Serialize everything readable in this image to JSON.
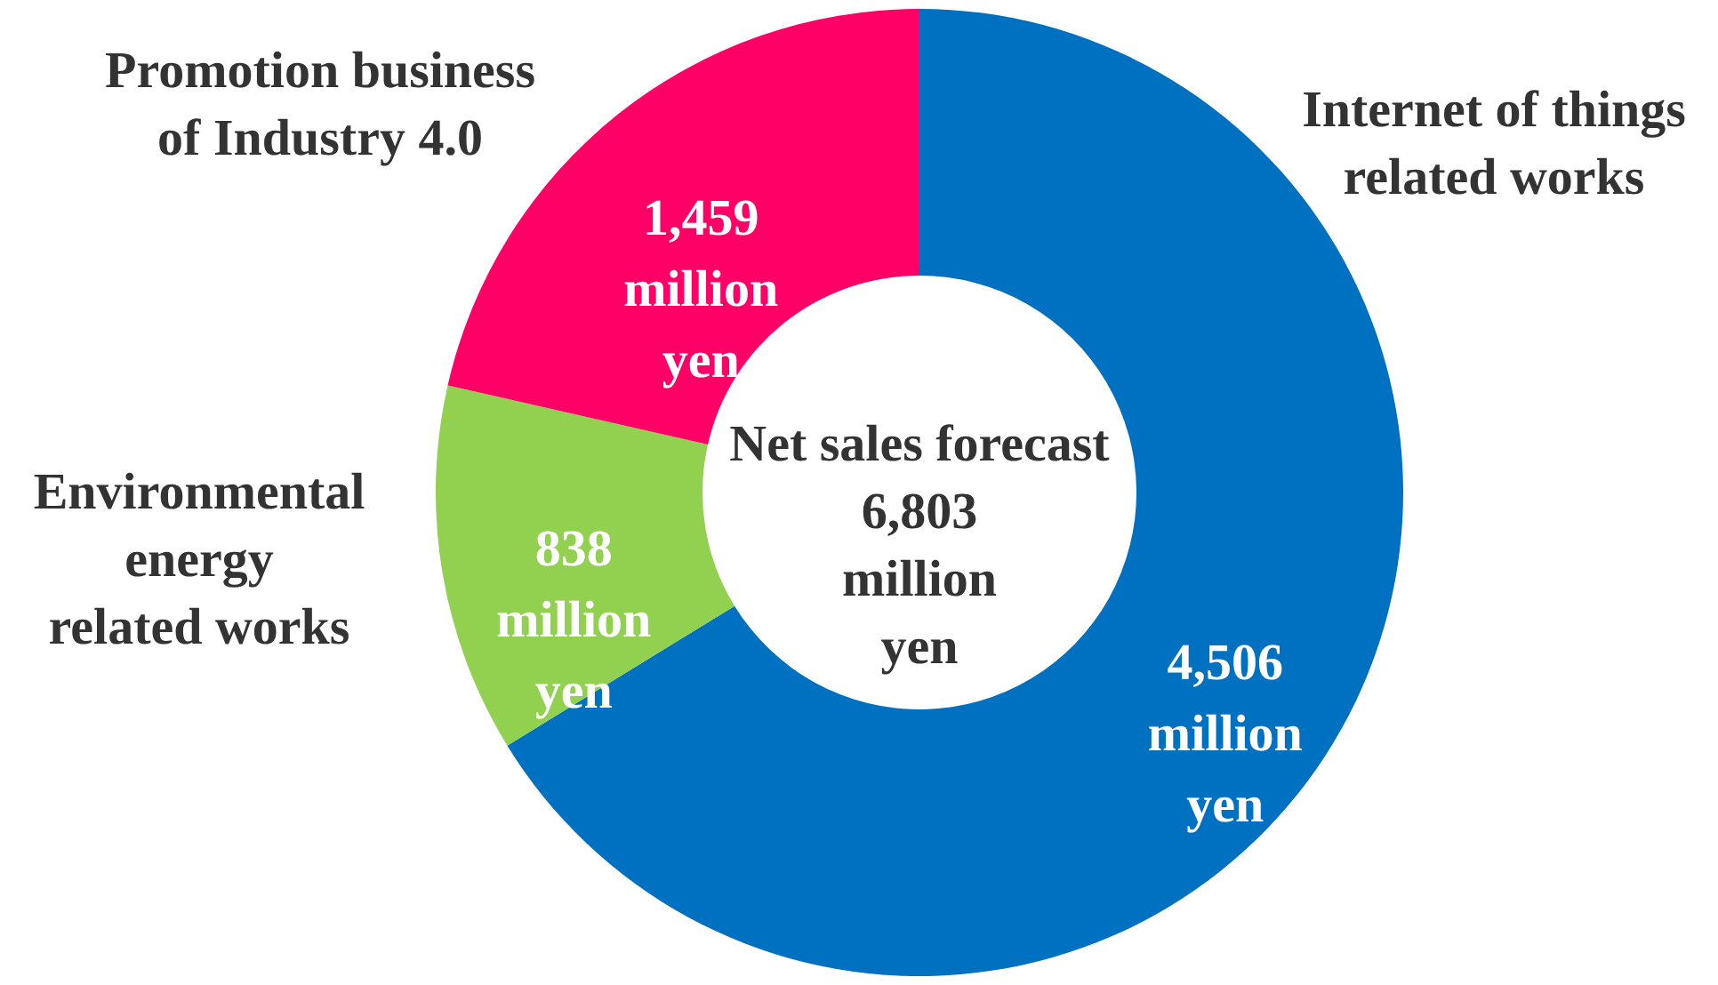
{
  "chart_data": {
    "type": "donut",
    "categories": [
      "Internet of things related works",
      "Environmental energy related works",
      "Promotion business of Industry 4.0"
    ],
    "values": [
      4506,
      838,
      1459
    ],
    "colors": [
      "#0070c0",
      "#92d050",
      "#ff0066"
    ],
    "value_labels": [
      "4,506 million yen",
      "838 million yen",
      "1,459 million yen"
    ],
    "annotations": [
      "Net sales forecast 6,803 million yen"
    ]
  }
}
